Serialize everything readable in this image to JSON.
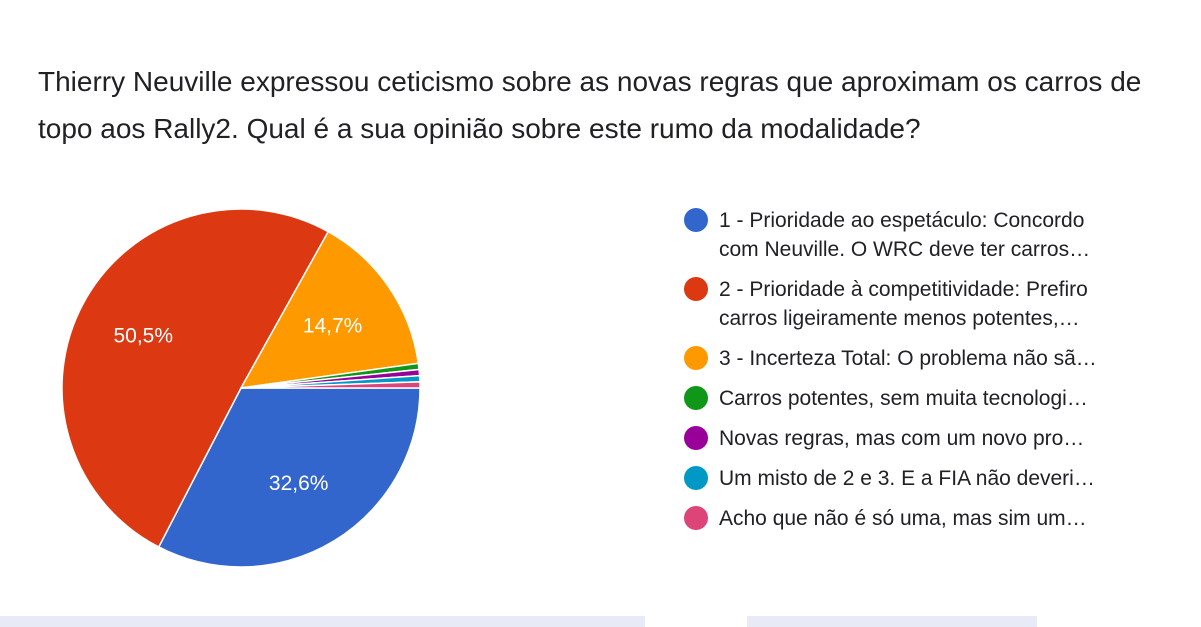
{
  "chart_data": {
    "type": "pie",
    "title": "Thierry Neuville expressou ceticismo sobre as novas regras que aproximam os carros de topo aos Rally2. Qual é a sua opinião sobre este rumo da modalidade?",
    "legend_position": "right",
    "slices": [
      {
        "label_lines": [
          "1 - Prioridade ao espetáculo: Concordo",
          "com Neuville. O WRC deve ter carros…"
        ],
        "value": 32.6,
        "value_label": "32,6%",
        "color": "#3366cc"
      },
      {
        "label_lines": [
          "2 - Prioridade à competitividade: Prefiro",
          "carros ligeiramente menos potentes,…"
        ],
        "value": 50.5,
        "value_label": "50,5%",
        "color": "#dc3912"
      },
      {
        "label_lines": [
          "3 - Incerteza Total: O problema não sã…"
        ],
        "value": 14.7,
        "value_label": "14,7%",
        "color": "#ff9900"
      },
      {
        "label_lines": [
          "Carros potentes, sem muita tecnologi…"
        ],
        "value": 0.55,
        "value_label": "",
        "color": "#109618"
      },
      {
        "label_lines": [
          "Novas regras, mas com um novo pro…"
        ],
        "value": 0.55,
        "value_label": "",
        "color": "#990099"
      },
      {
        "label_lines": [
          "Um misto de 2 e 3. E a FIA não deveri…"
        ],
        "value": 0.55,
        "value_label": "",
        "color": "#0099c6"
      },
      {
        "label_lines": [
          "Acho que não é só uma, mas sim um…"
        ],
        "value": 0.55,
        "value_label": "",
        "color": "#dd4477"
      }
    ]
  }
}
